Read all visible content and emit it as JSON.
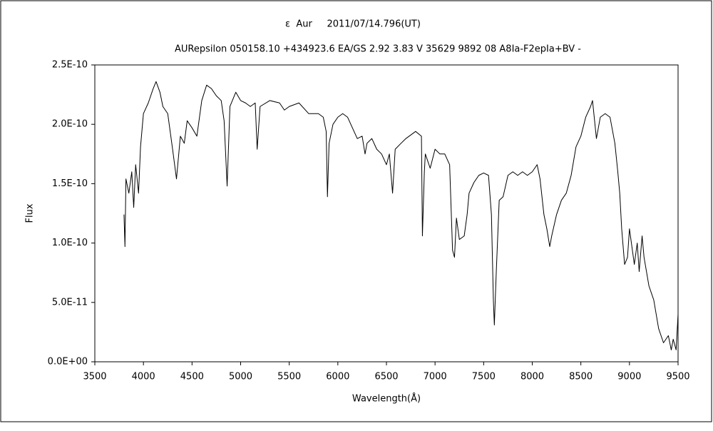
{
  "chart_data": {
    "type": "line",
    "title": "ε  Aur     2011/07/14.796(UT)",
    "subtitle": "AURepsilon 050158.10 +434923.6 EA/GS 2.92 3.83 V 35629 9892 08 A8Ia-F2epIa+BV -",
    "x_label": "Wavelength(Å)",
    "y_label": "Flux",
    "xlim": [
      3500,
      9500
    ],
    "xticks": [
      3500,
      4000,
      4500,
      5000,
      5500,
      6000,
      6500,
      7000,
      7500,
      8000,
      8500,
      9000,
      9500
    ],
    "ylim": [
      0,
      2.5e-10
    ],
    "yticks": [
      {
        "value": 0,
        "label": "0.0E+00"
      },
      {
        "value": 5e-11,
        "label": "5.0E-11"
      },
      {
        "value": 1e-10,
        "label": "1.0E-10"
      },
      {
        "value": 1.5e-10,
        "label": "1.5E-10"
      },
      {
        "value": 2e-10,
        "label": "2.0E-10"
      },
      {
        "value": 2.5e-10,
        "label": "2.5E-10"
      }
    ],
    "grid": false,
    "color": "#000000",
    "x": [
      3800,
      3810,
      3820,
      3850,
      3880,
      3900,
      3920,
      3950,
      3970,
      4000,
      4050,
      4100,
      4130,
      4170,
      4200,
      4250,
      4300,
      4340,
      4380,
      4420,
      4450,
      4500,
      4550,
      4600,
      4650,
      4700,
      4750,
      4800,
      4830,
      4861,
      4890,
      4950,
      5000,
      5050,
      5100,
      5150,
      5170,
      5200,
      5300,
      5400,
      5450,
      5500,
      5600,
      5700,
      5800,
      5850,
      5880,
      5893,
      5910,
      5950,
      6000,
      6050,
      6100,
      6150,
      6200,
      6250,
      6280,
      6300,
      6350,
      6400,
      6450,
      6500,
      6530,
      6563,
      6590,
      6650,
      6700,
      6800,
      6860,
      6870,
      6890,
      6900,
      6950,
      7000,
      7050,
      7100,
      7150,
      7160,
      7180,
      7200,
      7220,
      7250,
      7300,
      7330,
      7350,
      7400,
      7450,
      7500,
      7550,
      7580,
      7600,
      7610,
      7630,
      7660,
      7700,
      7750,
      7800,
      7850,
      7900,
      7950,
      8000,
      8050,
      8080,
      8120,
      8150,
      8180,
      8200,
      8250,
      8300,
      8350,
      8400,
      8450,
      8500,
      8550,
      8600,
      8620,
      8660,
      8700,
      8750,
      8800,
      8850,
      8880,
      8900,
      8920,
      8950,
      8980,
      9000,
      9050,
      9080,
      9100,
      9130,
      9150,
      9200,
      9250,
      9300,
      9350,
      9400,
      9430,
      9450,
      9480,
      9500
    ],
    "values": [
      1.24e-10,
      9.7e-11,
      1.54e-10,
      1.42e-10,
      1.6e-10,
      1.3e-10,
      1.66e-10,
      1.42e-10,
      1.81e-10,
      2.09e-10,
      2.18e-10,
      2.3e-10,
      2.36e-10,
      2.27e-10,
      2.15e-10,
      2.09e-10,
      1.79e-10,
      1.54e-10,
      1.9e-10,
      1.84e-10,
      2.03e-10,
      1.97e-10,
      1.9e-10,
      2.2e-10,
      2.33e-10,
      2.3e-10,
      2.24e-10,
      2.2e-10,
      2.03e-10,
      1.48e-10,
      2.15e-10,
      2.27e-10,
      2.2e-10,
      2.18e-10,
      2.15e-10,
      2.18e-10,
      1.79e-10,
      2.15e-10,
      2.2e-10,
      2.18e-10,
      2.12e-10,
      2.15e-10,
      2.18e-10,
      2.09e-10,
      2.09e-10,
      2.06e-10,
      1.94e-10,
      1.39e-10,
      1.84e-10,
      2e-10,
      2.06e-10,
      2.09e-10,
      2.06e-10,
      1.97e-10,
      1.88e-10,
      1.9e-10,
      1.75e-10,
      1.84e-10,
      1.88e-10,
      1.79e-10,
      1.75e-10,
      1.66e-10,
      1.75e-10,
      1.42e-10,
      1.79e-10,
      1.84e-10,
      1.88e-10,
      1.94e-10,
      1.9e-10,
      1.06e-10,
      1.6e-10,
      1.75e-10,
      1.63e-10,
      1.79e-10,
      1.75e-10,
      1.75e-10,
      1.66e-10,
      1.42e-10,
      9.4e-11,
      8.8e-11,
      1.21e-10,
      1.03e-10,
      1.06e-10,
      1.24e-10,
      1.42e-10,
      1.51e-10,
      1.57e-10,
      1.59e-10,
      1.57e-10,
      1.24e-10,
      5.2e-11,
      3.1e-11,
      7.6e-11,
      1.36e-10,
      1.39e-10,
      1.57e-10,
      1.6e-10,
      1.57e-10,
      1.6e-10,
      1.57e-10,
      1.6e-10,
      1.66e-10,
      1.54e-10,
      1.24e-10,
      1.12e-10,
      9.7e-11,
      1.06e-10,
      1.24e-10,
      1.36e-10,
      1.42e-10,
      1.57e-10,
      1.81e-10,
      1.9e-10,
      2.06e-10,
      2.15e-10,
      2.2e-10,
      1.88e-10,
      2.06e-10,
      2.09e-10,
      2.06e-10,
      1.84e-10,
      1.6e-10,
      1.42e-10,
      1.12e-10,
      8.2e-11,
      8.8e-11,
      1.12e-10,
      8.2e-11,
      1e-10,
      7.6e-11,
      1.06e-10,
      8.8e-11,
      6.4e-11,
      5.2e-11,
      2.8e-11,
      1.6e-11,
      2.2e-11,
      1e-11,
      1.9e-11,
      1e-11,
      4e-11
    ]
  }
}
